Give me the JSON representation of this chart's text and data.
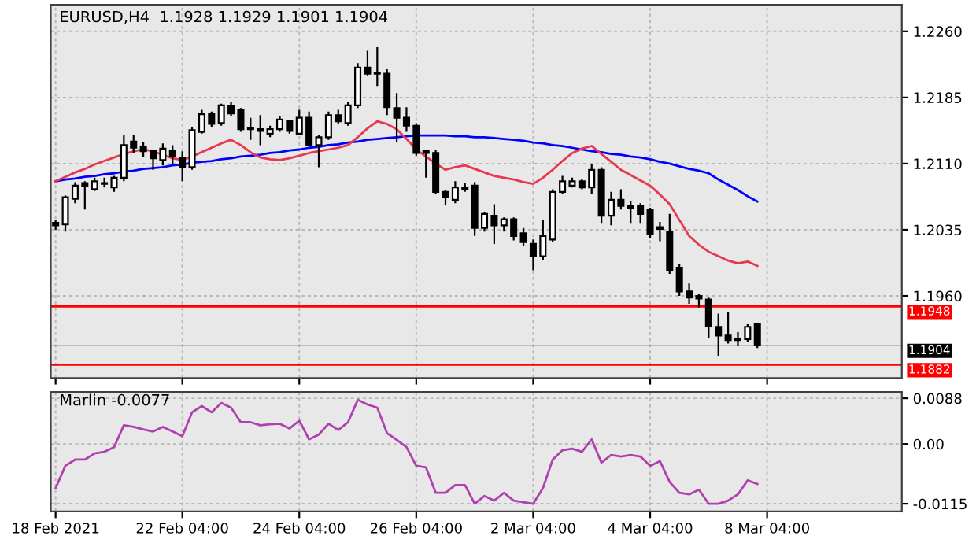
{
  "chart_data": [
    {
      "type": "candlestick",
      "title": "EURUSD,H4  1.1928 1.1929 1.1901 1.1904",
      "categories": [
        null,
        null,
        null,
        null,
        null,
        null,
        null,
        null,
        null,
        null,
        null,
        null,
        null,
        null,
        null,
        null,
        null,
        null,
        null,
        null,
        null,
        null,
        null,
        null,
        null,
        null,
        null,
        null,
        null,
        null,
        null,
        null,
        null,
        null,
        null,
        null,
        null,
        null,
        null,
        null,
        null,
        null,
        null,
        null,
        null,
        null,
        null,
        null,
        null,
        null,
        null,
        null,
        null,
        null,
        null,
        null,
        null,
        null,
        null,
        null,
        null,
        null,
        null,
        null,
        null,
        null,
        null,
        null,
        null,
        null,
        null,
        null,
        null,
        null
      ],
      "ohlc": [
        [
          1.2043,
          1.2046,
          1.2035,
          1.204
        ],
        [
          1.2041,
          1.2074,
          1.2033,
          1.2072
        ],
        [
          1.207,
          1.2089,
          1.2065,
          1.2085
        ],
        [
          1.2088,
          1.209,
          1.2058,
          1.2085
        ],
        [
          1.2081,
          1.2094,
          1.2079,
          1.209
        ],
        [
          1.2087,
          1.2094,
          1.2083,
          1.2088
        ],
        [
          1.2083,
          1.2096,
          1.2078,
          1.2094
        ],
        [
          1.2094,
          1.2142,
          1.209,
          1.2131
        ],
        [
          1.2135,
          1.2142,
          1.2122,
          1.2128
        ],
        [
          1.2129,
          1.2135,
          1.2117,
          1.2124
        ],
        [
          1.2124,
          1.2126,
          1.2103,
          1.2116
        ],
        [
          1.2114,
          1.2133,
          1.2108,
          1.2127
        ],
        [
          1.2124,
          1.2131,
          1.211,
          1.2119
        ],
        [
          1.2117,
          1.2124,
          1.209,
          1.2106
        ],
        [
          1.2106,
          1.2151,
          1.2103,
          1.2148
        ],
        [
          1.2146,
          1.2171,
          1.2144,
          1.2166
        ],
        [
          1.2166,
          1.2169,
          1.2151,
          1.2155
        ],
        [
          1.2156,
          1.2178,
          1.2153,
          1.2176
        ],
        [
          1.2175,
          1.218,
          1.2164,
          1.2167
        ],
        [
          1.2171,
          1.2173,
          1.2146,
          1.2149
        ],
        [
          1.215,
          1.2162,
          1.2137,
          1.2149
        ],
        [
          1.2149,
          1.2165,
          1.2131,
          1.2147
        ],
        [
          1.2144,
          1.2153,
          1.214,
          1.2149
        ],
        [
          1.2149,
          1.2164,
          1.2146,
          1.216
        ],
        [
          1.2158,
          1.216,
          1.2144,
          1.2147
        ],
        [
          1.2144,
          1.2171,
          1.2142,
          1.2162
        ],
        [
          1.2162,
          1.2169,
          1.213,
          1.2131
        ],
        [
          1.2131,
          1.2142,
          1.2106,
          1.214
        ],
        [
          1.214,
          1.2169,
          1.2137,
          1.2165
        ],
        [
          1.2165,
          1.2171,
          1.2155,
          1.2158
        ],
        [
          1.2156,
          1.218,
          1.2153,
          1.2176
        ],
        [
          1.2176,
          1.2224,
          1.2173,
          1.2219
        ],
        [
          1.2219,
          1.2238,
          1.221,
          1.2212
        ],
        [
          1.2213,
          1.2242,
          1.2198,
          1.2212
        ],
        [
          1.2212,
          1.2217,
          1.2165,
          1.2174
        ],
        [
          1.2173,
          1.219,
          1.2135,
          1.2162
        ],
        [
          1.2162,
          1.2174,
          1.2146,
          1.2153
        ],
        [
          1.2153,
          1.2156,
          1.2119,
          1.2122
        ],
        [
          1.2124,
          1.2126,
          1.2094,
          1.2122
        ],
        [
          1.2122,
          1.2126,
          1.2076,
          1.2078
        ],
        [
          1.2078,
          1.208,
          1.2063,
          1.2072
        ],
        [
          1.2069,
          1.209,
          1.2065,
          1.2083
        ],
        [
          1.2083,
          1.2088,
          1.2078,
          1.2081
        ],
        [
          1.2085,
          1.2089,
          1.2028,
          1.2037
        ],
        [
          1.2037,
          1.2055,
          1.2033,
          1.2053
        ],
        [
          1.2051,
          1.2064,
          1.2019,
          1.204
        ],
        [
          1.204,
          1.2049,
          1.2033,
          1.2047
        ],
        [
          1.2047,
          1.2049,
          1.2023,
          1.2028
        ],
        [
          1.2031,
          1.2037,
          1.2017,
          1.2021
        ],
        [
          1.2019,
          1.2024,
          1.1989,
          1.2005
        ],
        [
          1.2005,
          1.2046,
          1.2001,
          1.2028
        ],
        [
          1.2024,
          1.2081,
          1.2021,
          1.2078
        ],
        [
          1.2078,
          1.2096,
          1.2076,
          1.209
        ],
        [
          1.2085,
          1.2094,
          1.2083,
          1.209
        ],
        [
          1.209,
          1.2092,
          1.2081,
          1.2083
        ],
        [
          1.2083,
          1.211,
          1.2076,
          1.2103
        ],
        [
          1.2103,
          1.2106,
          1.2042,
          1.2051
        ],
        [
          1.2051,
          1.2078,
          1.204,
          1.2069
        ],
        [
          1.2069,
          1.2081,
          1.2058,
          1.2062
        ],
        [
          1.2062,
          1.2067,
          1.2042,
          1.206
        ],
        [
          1.2062,
          1.2065,
          1.2042,
          1.2053
        ],
        [
          1.2058,
          1.206,
          1.2026,
          1.203
        ],
        [
          1.2038,
          1.2044,
          1.2022,
          1.2036
        ],
        [
          1.2033,
          1.2053,
          1.1985,
          1.1989
        ],
        [
          1.1992,
          1.1996,
          1.196,
          1.1965
        ],
        [
          1.1965,
          1.1974,
          1.1951,
          1.1958
        ],
        [
          1.196,
          1.1962,
          1.1947,
          1.1957
        ],
        [
          1.1956,
          1.1958,
          1.1912,
          1.1926
        ],
        [
          1.1925,
          1.194,
          1.1892,
          1.1915
        ],
        [
          1.1915,
          1.1942,
          1.1906,
          1.191
        ],
        [
          1.1911,
          1.1919,
          1.1903,
          1.191
        ],
        [
          1.1911,
          1.1928,
          1.1908,
          1.1925
        ],
        [
          1.1928,
          1.1929,
          1.1901,
          1.1904
        ],
        null
      ],
      "series": [
        {
          "type": "line",
          "color": "#0000ff",
          "values": [
            1.209,
            1.2092,
            1.2093,
            1.2095,
            1.2096,
            1.2098,
            1.2099,
            1.2101,
            1.2102,
            1.2104,
            1.2105,
            1.2106,
            1.2108,
            1.2109,
            1.2111,
            1.2112,
            1.2113,
            1.2115,
            1.2116,
            1.2118,
            1.2119,
            1.212,
            1.2122,
            1.2123,
            1.2125,
            1.2126,
            1.2128,
            1.2129,
            1.2131,
            1.2132,
            1.2134,
            1.2135,
            1.2137,
            1.2138,
            1.2139,
            1.214,
            1.2141,
            1.2142,
            1.2142,
            1.2142,
            1.2142,
            1.2141,
            1.2141,
            1.214,
            1.214,
            1.2139,
            1.2138,
            1.2137,
            1.2136,
            1.2134,
            1.2133,
            1.2131,
            1.213,
            1.2128,
            1.2126,
            1.2124,
            1.2123,
            1.2121,
            1.212,
            1.2118,
            1.2117,
            1.2115,
            1.2112,
            1.211,
            1.2107,
            1.2104,
            1.2102,
            1.2099,
            1.2092,
            1.2086,
            1.208,
            1.2073,
            1.2067,
            null
          ]
        },
        {
          "type": "line",
          "color": "#e8384f",
          "values": [
            1.209,
            1.2095,
            1.21,
            1.2104,
            1.2109,
            1.2113,
            1.2117,
            1.2121,
            1.2124,
            1.2126,
            1.2124,
            1.212,
            1.2116,
            1.2114,
            1.2118,
            1.2123,
            1.2128,
            1.2133,
            1.2137,
            1.2131,
            1.2123,
            1.2117,
            1.2115,
            1.2114,
            1.2116,
            1.2119,
            1.2122,
            1.2124,
            1.2126,
            1.2128,
            1.2131,
            1.214,
            1.215,
            1.2158,
            1.2155,
            1.2149,
            1.2138,
            1.2126,
            1.2118,
            1.211,
            1.2103,
            1.2106,
            1.2108,
            1.2104,
            1.21,
            1.2096,
            1.2094,
            1.2092,
            1.2089,
            1.2087,
            1.2094,
            1.2103,
            1.2113,
            1.2122,
            1.2127,
            1.213,
            1.2121,
            1.2112,
            1.2103,
            1.2097,
            1.2091,
            1.2085,
            1.2075,
            1.2064,
            1.2046,
            1.2028,
            1.2018,
            1.201,
            1.2005,
            1.2,
            1.1997,
            1.1999,
            1.1994,
            null
          ]
        }
      ],
      "ylim": [
        1.1867,
        1.229
      ],
      "yticks": [
        {
          "value": 1.226,
          "label": "1.2260"
        },
        1.2185,
        {
          "value": 1.211,
          "label": "1.2110"
        },
        1.2035,
        {
          "value": 1.196,
          "label": "1.1960"
        }
      ],
      "tick_labels": "y",
      "grid": true,
      "ref_lines": [
        {
          "axis": "y",
          "value": 1.1948,
          "label": "1.1948",
          "color": "#ff0000"
        },
        {
          "axis": "y",
          "value": 1.1904,
          "label": "1.1904",
          "color": "#000000"
        },
        {
          "axis": "y",
          "value": 1.1882,
          "label": "1.1882",
          "color": "#ff0000"
        }
      ]
    },
    {
      "type": "line",
      "title": "Marlin -0.0077",
      "categories": [
        "18 Feb 2021",
        null,
        null,
        null,
        null,
        null,
        null,
        null,
        null,
        null,
        null,
        null,
        null,
        "22 Feb 04:00",
        null,
        null,
        null,
        null,
        null,
        null,
        null,
        null,
        null,
        null,
        null,
        "24 Feb 04:00",
        null,
        null,
        null,
        null,
        null,
        null,
        null,
        null,
        null,
        null,
        null,
        "26 Feb 04:00",
        null,
        null,
        null,
        null,
        null,
        null,
        null,
        null,
        null,
        null,
        null,
        "2 Mar 04:00",
        null,
        null,
        null,
        null,
        null,
        null,
        null,
        null,
        null,
        null,
        null,
        "4 Mar 04:00",
        null,
        null,
        null,
        null,
        null,
        null,
        null,
        null,
        null,
        null,
        null,
        "8 Mar 04:00"
      ],
      "series": [
        {
          "color": "#b040b0",
          "values": [
            -0.0085,
            -0.0042,
            -0.003,
            -0.003,
            -0.0018,
            -0.0015,
            -0.0006,
            0.0036,
            0.0033,
            0.0028,
            0.0024,
            0.0033,
            0.0024,
            0.0015,
            0.0061,
            0.0073,
            0.0061,
            0.0079,
            0.007,
            0.0042,
            0.0042,
            0.0036,
            0.0038,
            0.0039,
            0.003,
            0.0045,
            0.0009,
            0.0018,
            0.0039,
            0.0027,
            0.0042,
            0.0085,
            0.0076,
            0.007,
            0.0021,
            0.0008,
            -0.0006,
            -0.0042,
            -0.0045,
            -0.0094,
            -0.0094,
            -0.0079,
            -0.0079,
            -0.0115,
            -0.01,
            -0.0109,
            -0.0094,
            -0.0109,
            -0.0112,
            -0.0115,
            -0.0085,
            -0.003,
            -0.0012,
            -0.0009,
            -0.0015,
            0.0009,
            -0.0036,
            -0.0021,
            -0.0024,
            -0.0021,
            -0.0024,
            -0.0042,
            -0.0033,
            -0.0073,
            -0.0094,
            -0.0097,
            -0.0088,
            -0.0115,
            -0.0115,
            -0.0109,
            -0.0097,
            -0.007,
            -0.0077,
            null
          ]
        }
      ],
      "ylim": [
        -0.013,
        0.01
      ],
      "yticks": [
        0.0088,
        {
          "value": 0,
          "label": "0.00"
        },
        -0.0115
      ],
      "grid": true
    }
  ]
}
